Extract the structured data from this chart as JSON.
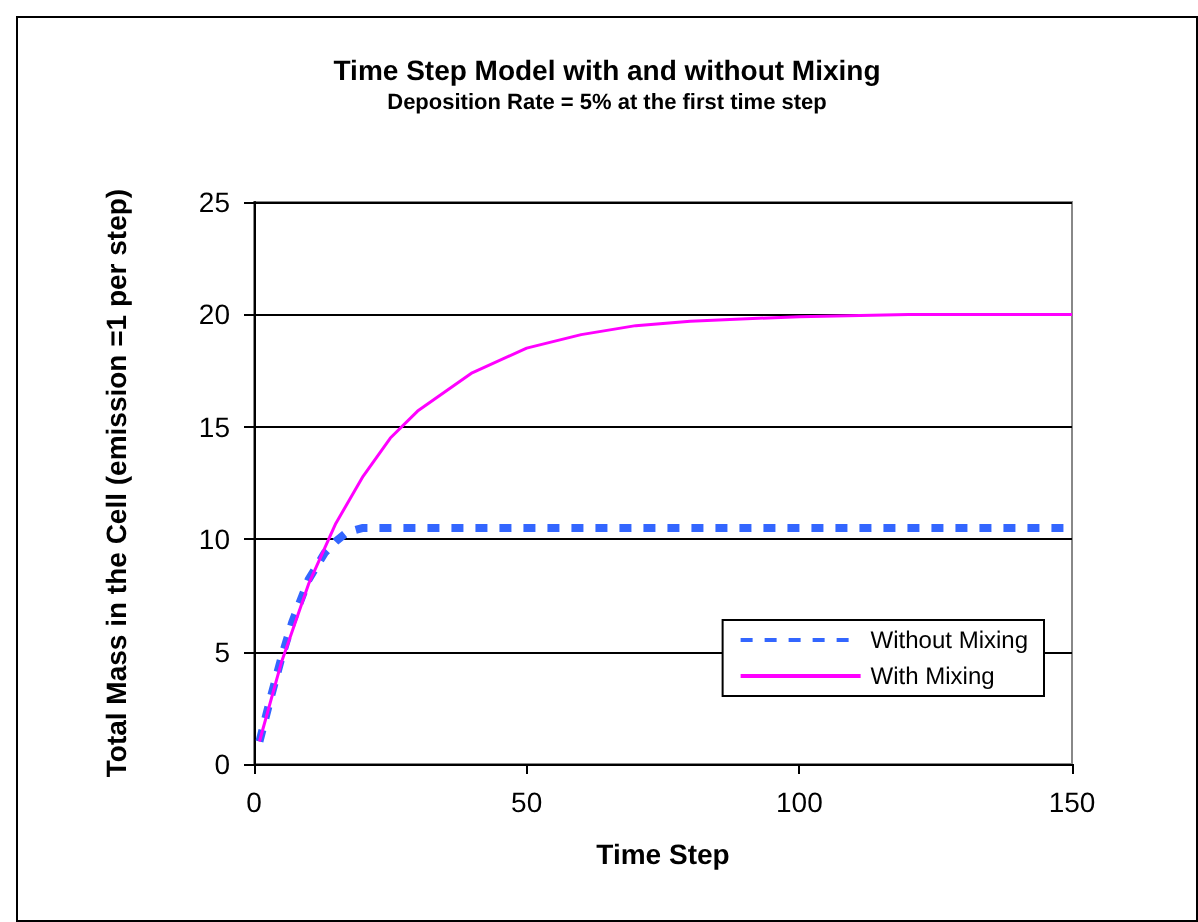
{
  "chart_data": {
    "type": "line",
    "title": "Time Step Model with and without Mixing",
    "subtitle": "Deposition Rate = 5% at the first time step",
    "xlabel": "Time Step",
    "ylabel": "Total Mass in the Cell (emission =1 per step)",
    "series": [
      {
        "name": "Without Mixing",
        "color": "#3366ff",
        "line_style": "dashed",
        "x": [
          1,
          3,
          5,
          7,
          10,
          13,
          15,
          17,
          20,
          50,
          100,
          150
        ],
        "values": [
          1,
          2.9,
          4.7,
          6.3,
          8.2,
          9.4,
          9.9,
          10.3,
          10.5,
          10.5,
          10.5,
          10.5
        ]
      },
      {
        "name": "With Mixing",
        "color": "#ff00ff",
        "line_style": "solid",
        "x": [
          1,
          5,
          10,
          15,
          20,
          25,
          30,
          40,
          50,
          60,
          70,
          80,
          100,
          120,
          150
        ],
        "values": [
          1,
          4.5,
          8.0,
          10.7,
          12.8,
          14.5,
          15.7,
          17.4,
          18.5,
          19.1,
          19.5,
          19.7,
          19.9,
          20.0,
          20.0
        ]
      }
    ],
    "xlim": [
      0,
      150
    ],
    "xticks": [
      0,
      50,
      100,
      150
    ],
    "ylim": [
      0,
      25
    ],
    "yticks": [
      0,
      5,
      10,
      15,
      20,
      25
    ],
    "grid": "y",
    "legend": "bottom right",
    "marker": "none"
  }
}
